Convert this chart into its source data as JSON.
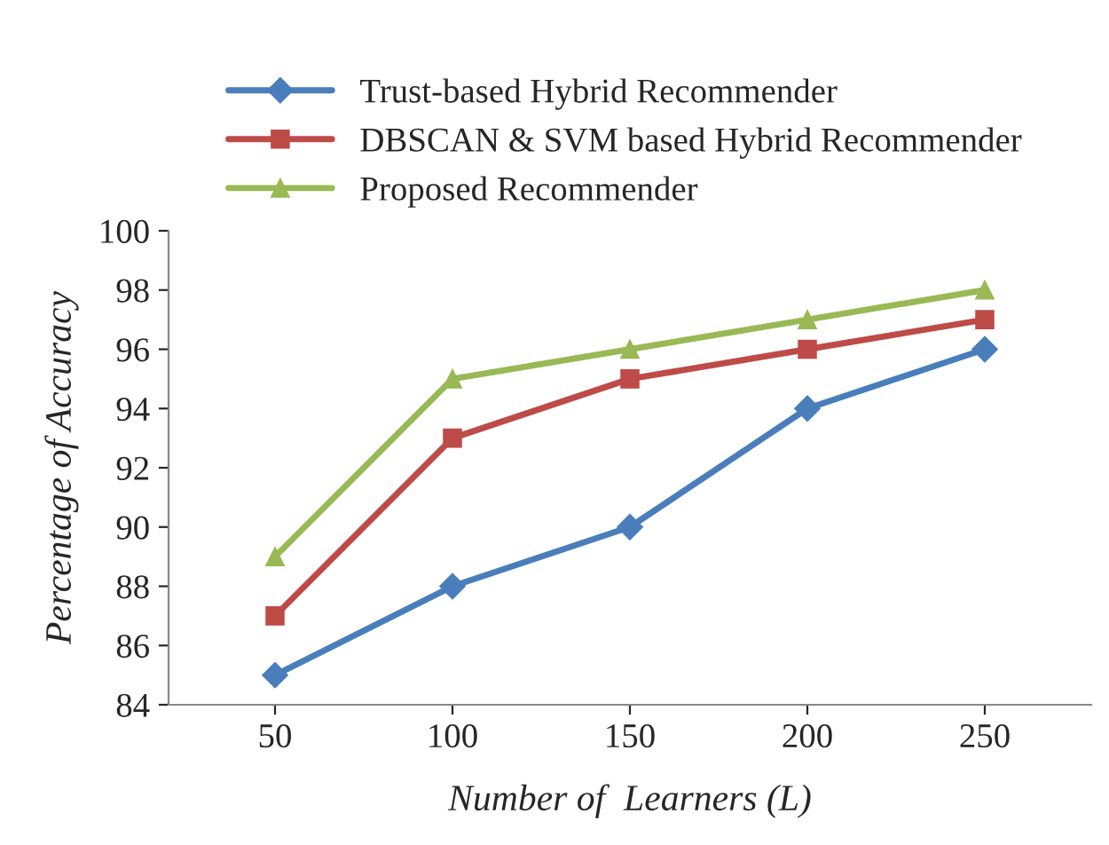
{
  "chart_data": {
    "type": "line",
    "xlabel": "Number of  Learners (L)",
    "ylabel": "Percentage of Accuracy",
    "categories": [
      "50",
      "100",
      "150",
      "200",
      "250"
    ],
    "series": [
      {
        "name": "Trust-based Hybrid Recommender",
        "color": "#4a7ebb",
        "marker": "diamond",
        "values": [
          85,
          88,
          90,
          94,
          96
        ]
      },
      {
        "name": "DBSCAN & SVM based Hybrid Recommender",
        "color": "#be4b48",
        "marker": "square",
        "values": [
          87,
          93,
          95,
          96,
          97
        ]
      },
      {
        "name": "Proposed Recommender",
        "color": "#98b954",
        "marker": "triangle",
        "values": [
          89,
          95,
          96,
          97,
          98
        ]
      }
    ],
    "ylim": [
      84,
      100
    ],
    "yticks": [
      84,
      86,
      88,
      90,
      92,
      94,
      96,
      98,
      100
    ],
    "grid": false,
    "legend": "top",
    "line_style": "solid"
  }
}
